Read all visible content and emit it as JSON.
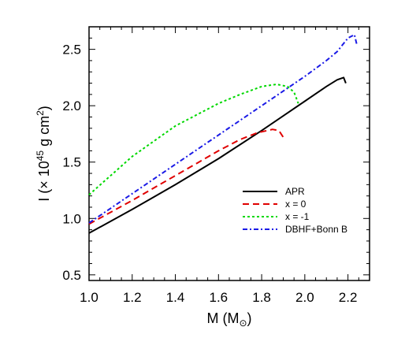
{
  "chart_data": {
    "type": "line",
    "xlabel": {
      "main": "M (M",
      "sub": "⊙",
      "close": ")"
    },
    "ylabel": {
      "main": "I (× 10",
      "sup1": "45",
      "mid": " g cm",
      "sup2": "2",
      "close": ")"
    },
    "xlim": [
      1.0,
      2.3
    ],
    "ylim": [
      0.45,
      2.7
    ],
    "x_ticks": [
      "1.0",
      "1.2",
      "1.4",
      "1.6",
      "1.8",
      "2.0",
      "2.2"
    ],
    "y_ticks": [
      "0.5",
      "1.0",
      "1.5",
      "2.0",
      "2.5"
    ],
    "grid": false,
    "legend_position": "center-right",
    "series": [
      {
        "name": "APR",
        "color": "#000000",
        "dash": "",
        "x": [
          1.0,
          1.2,
          1.4,
          1.6,
          1.8,
          1.9,
          2.0,
          2.1,
          2.15,
          2.18,
          2.19
        ],
        "y": [
          0.87,
          1.08,
          1.3,
          1.53,
          1.78,
          1.91,
          2.04,
          2.17,
          2.23,
          2.25,
          2.2
        ]
      },
      {
        "name": "x = 0",
        "color": "#e00000",
        "dash": "8,5",
        "x": [
          1.0,
          1.2,
          1.4,
          1.5,
          1.6,
          1.7,
          1.78,
          1.85,
          1.88,
          1.9
        ],
        "y": [
          0.95,
          1.16,
          1.38,
          1.49,
          1.6,
          1.7,
          1.76,
          1.79,
          1.78,
          1.72
        ]
      },
      {
        "name": "x = -1",
        "color": "#00d800",
        "dash": "3,3",
        "x": [
          1.0,
          1.2,
          1.4,
          1.6,
          1.7,
          1.8,
          1.87,
          1.92,
          1.95,
          1.97
        ],
        "y": [
          1.21,
          1.55,
          1.82,
          2.02,
          2.1,
          2.17,
          2.19,
          2.17,
          2.12,
          2.02
        ]
      },
      {
        "name": "DBHF+Bonn B",
        "color": "#1a1ae6",
        "dash": "6,3,2,3",
        "x": [
          1.0,
          1.2,
          1.4,
          1.6,
          1.8,
          2.0,
          2.1,
          2.15,
          2.2,
          2.23,
          2.24
        ],
        "y": [
          0.96,
          1.22,
          1.48,
          1.74,
          2.0,
          2.26,
          2.4,
          2.48,
          2.6,
          2.63,
          2.55
        ]
      }
    ]
  }
}
